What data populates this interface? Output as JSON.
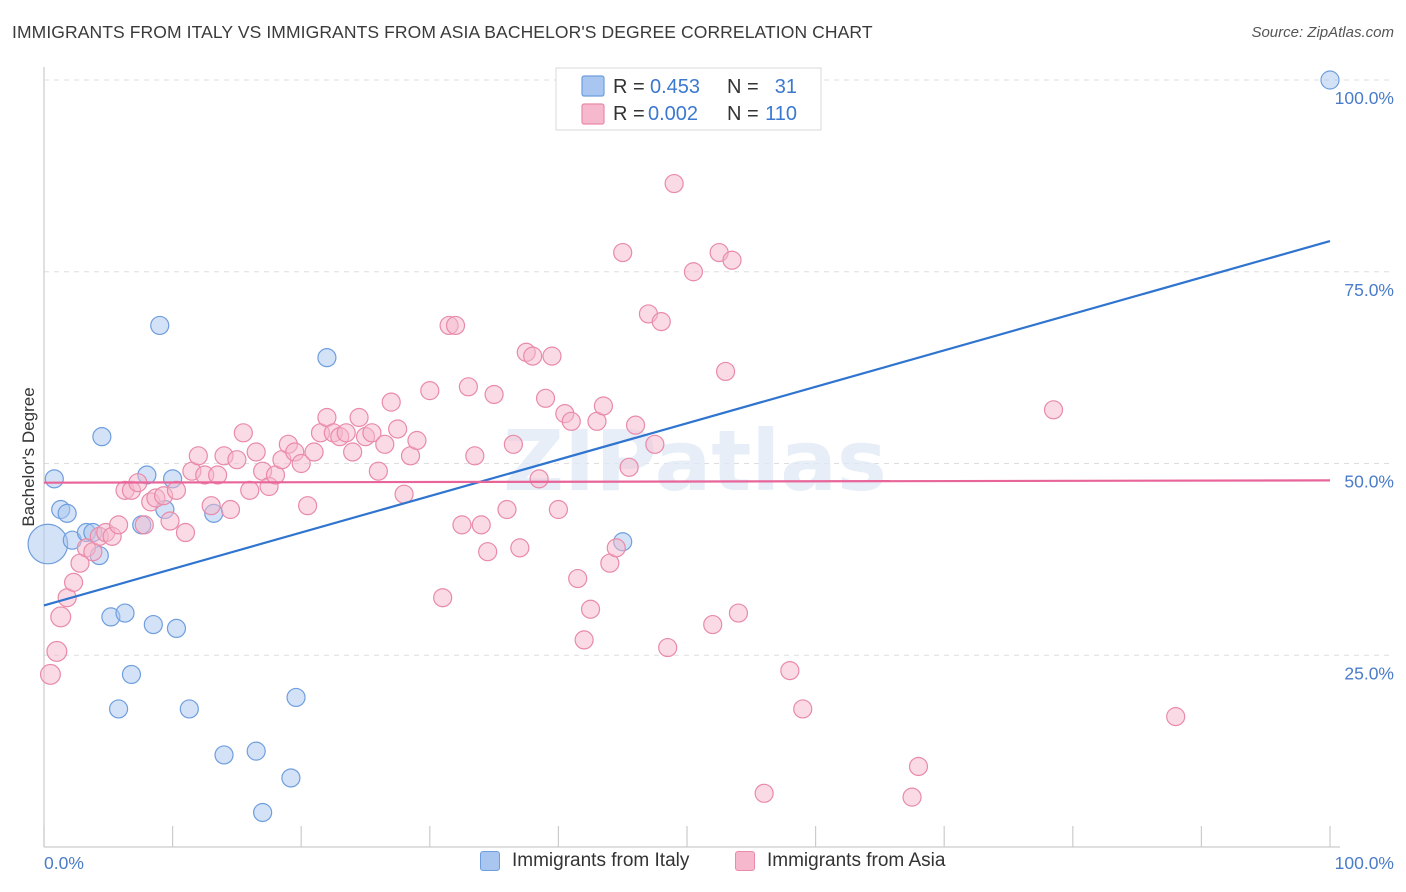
{
  "header": {
    "title": "IMMIGRANTS FROM ITALY VS IMMIGRANTS FROM ASIA BACHELOR'S DEGREE CORRELATION CHART",
    "source": "Source: ZipAtlas.com"
  },
  "colors": {
    "italy_fill": "#a8c6f0",
    "italy_stroke": "#6f9ede",
    "italy_line": "#2f74cf",
    "asia_fill": "#f5b8cc",
    "asia_stroke": "#e98aa9",
    "asia_line": "#e8659a",
    "tick_text": "#4a7cc9",
    "grid": "#dddddd"
  },
  "stats_legend": {
    "rows": [
      {
        "r_label": "R =",
        "r_value": "0.453",
        "n_label": "N =",
        "n_value": "31"
      },
      {
        "r_label": "R =",
        "r_value": "0.002",
        "n_label": "N =",
        "n_value": "110"
      }
    ]
  },
  "chart_data": {
    "type": "scatter",
    "title": "IMMIGRANTS FROM ITALY VS IMMIGRANTS FROM ASIA BACHELOR'S DEGREE CORRELATION CHART",
    "xlabel": "",
    "ylabel": "Bachelor's Degree",
    "xlim": [
      0,
      100
    ],
    "ylim": [
      0,
      100
    ],
    "x_tick_labels": {
      "left": "0.0%",
      "right": "100.0%"
    },
    "y_ticks": [
      {
        "value": 100,
        "label": "100.0%"
      },
      {
        "value": 75,
        "label": "75.0%"
      },
      {
        "value": 50,
        "label": "50.0%"
      },
      {
        "value": 25,
        "label": "25.0%"
      }
    ],
    "legend_position": "bottom",
    "watermark": "ZIPatlas",
    "series": [
      {
        "name": "Immigrants from Italy",
        "color_key": "italy",
        "r": 0.453,
        "n": 31,
        "trend": {
          "x0": 0,
          "y0": 31.5,
          "x1": 100,
          "y1": 79.0
        },
        "points": [
          [
            0.3,
            39.5,
            2.2
          ],
          [
            0.8,
            48.0,
            1
          ],
          [
            1.3,
            44.0,
            1
          ],
          [
            1.8,
            43.5,
            1
          ],
          [
            2.2,
            40.0,
            1
          ],
          [
            3.3,
            41.0,
            1
          ],
          [
            3.8,
            41.0,
            1
          ],
          [
            4.3,
            38.0,
            1
          ],
          [
            4.5,
            53.5,
            1
          ],
          [
            5.2,
            30.0,
            1
          ],
          [
            5.8,
            18.0,
            1
          ],
          [
            6.3,
            30.5,
            1
          ],
          [
            6.8,
            22.5,
            1
          ],
          [
            7.6,
            42.0,
            1
          ],
          [
            8.0,
            48.5,
            1
          ],
          [
            8.5,
            29.0,
            1
          ],
          [
            9.0,
            68.0,
            1
          ],
          [
            9.4,
            44.0,
            1
          ],
          [
            10.0,
            48.0,
            1
          ],
          [
            10.3,
            28.5,
            1
          ],
          [
            11.3,
            18.0,
            1
          ],
          [
            13.2,
            43.5,
            1
          ],
          [
            14.0,
            12.0,
            1
          ],
          [
            16.5,
            12.5,
            1
          ],
          [
            17.0,
            4.5,
            1
          ],
          [
            19.2,
            9.0,
            1
          ],
          [
            19.6,
            19.5,
            1
          ],
          [
            22.0,
            63.8,
            1
          ],
          [
            45.0,
            39.8,
            1
          ],
          [
            100.0,
            100.0,
            1
          ]
        ]
      },
      {
        "name": "Immigrants from Asia",
        "color_key": "asia",
        "r": 0.002,
        "n": 110,
        "trend": {
          "x0": 0,
          "y0": 47.5,
          "x1": 100,
          "y1": 47.8
        },
        "points": [
          [
            0.5,
            22.5,
            1.1
          ],
          [
            1.0,
            25.5,
            1.1
          ],
          [
            1.3,
            30.0,
            1.1
          ],
          [
            1.8,
            32.5,
            1
          ],
          [
            2.3,
            34.5,
            1
          ],
          [
            2.8,
            37.0,
            1
          ],
          [
            3.3,
            39.0,
            1
          ],
          [
            3.8,
            38.5,
            1
          ],
          [
            4.3,
            40.5,
            1
          ],
          [
            4.8,
            41.0,
            1
          ],
          [
            5.3,
            40.5,
            1
          ],
          [
            5.8,
            42.0,
            1
          ],
          [
            6.3,
            46.5,
            1
          ],
          [
            6.8,
            46.5,
            1
          ],
          [
            7.3,
            47.5,
            1
          ],
          [
            7.8,
            42.0,
            1
          ],
          [
            8.3,
            45.0,
            1
          ],
          [
            8.7,
            45.5,
            1
          ],
          [
            9.3,
            45.8,
            1
          ],
          [
            9.8,
            42.5,
            1
          ],
          [
            10.3,
            46.5,
            1
          ],
          [
            11.0,
            41.0,
            1
          ],
          [
            11.5,
            49.0,
            1
          ],
          [
            12.0,
            51.0,
            1
          ],
          [
            12.5,
            48.5,
            1
          ],
          [
            13.0,
            44.5,
            1
          ],
          [
            13.5,
            48.5,
            1
          ],
          [
            14.0,
            51.0,
            1
          ],
          [
            14.5,
            44.0,
            1
          ],
          [
            15.0,
            50.5,
            1
          ],
          [
            15.5,
            54.0,
            1
          ],
          [
            16.0,
            46.5,
            1
          ],
          [
            16.5,
            51.5,
            1
          ],
          [
            17.0,
            49.0,
            1
          ],
          [
            17.5,
            47.0,
            1
          ],
          [
            18.0,
            48.5,
            1
          ],
          [
            18.5,
            50.5,
            1
          ],
          [
            19.0,
            52.5,
            1
          ],
          [
            19.5,
            51.5,
            1
          ],
          [
            20.0,
            50.0,
            1
          ],
          [
            20.5,
            44.5,
            1
          ],
          [
            21.0,
            51.5,
            1
          ],
          [
            21.5,
            54.0,
            1
          ],
          [
            22.0,
            56.0,
            1
          ],
          [
            22.5,
            54.0,
            1
          ],
          [
            23.0,
            53.5,
            1
          ],
          [
            23.5,
            54.0,
            1
          ],
          [
            24.0,
            51.5,
            1
          ],
          [
            24.5,
            56.0,
            1
          ],
          [
            25.0,
            53.5,
            1
          ],
          [
            25.5,
            54.0,
            1
          ],
          [
            26.0,
            49.0,
            1
          ],
          [
            26.5,
            52.5,
            1
          ],
          [
            27.0,
            58.0,
            1
          ],
          [
            27.5,
            54.5,
            1
          ],
          [
            28.0,
            46.0,
            1
          ],
          [
            28.5,
            51.0,
            1
          ],
          [
            29.0,
            53.0,
            1
          ],
          [
            30.0,
            59.5,
            1
          ],
          [
            31.0,
            32.5,
            1
          ],
          [
            31.5,
            68.0,
            1
          ],
          [
            32.0,
            68.0,
            1
          ],
          [
            32.5,
            42.0,
            1
          ],
          [
            33.0,
            60.0,
            1
          ],
          [
            33.5,
            51.0,
            1
          ],
          [
            34.0,
            42.0,
            1
          ],
          [
            34.5,
            38.5,
            1
          ],
          [
            35.0,
            59.0,
            1
          ],
          [
            36.0,
            44.0,
            1
          ],
          [
            36.5,
            52.5,
            1
          ],
          [
            37.0,
            39.0,
            1
          ],
          [
            37.5,
            64.5,
            1
          ],
          [
            38.0,
            64.0,
            1
          ],
          [
            38.5,
            48.0,
            1
          ],
          [
            39.0,
            58.5,
            1
          ],
          [
            39.5,
            64.0,
            1
          ],
          [
            40.0,
            44.0,
            1
          ],
          [
            40.5,
            56.5,
            1
          ],
          [
            41.0,
            55.5,
            1
          ],
          [
            41.5,
            35.0,
            1
          ],
          [
            42.0,
            27.0,
            1
          ],
          [
            42.5,
            31.0,
            1
          ],
          [
            43.0,
            55.5,
            1
          ],
          [
            43.5,
            57.5,
            1
          ],
          [
            44.0,
            37.0,
            1
          ],
          [
            44.5,
            39.0,
            1
          ],
          [
            45.0,
            77.5,
            1
          ],
          [
            45.5,
            49.5,
            1
          ],
          [
            46.0,
            55.0,
            1
          ],
          [
            47.0,
            69.5,
            1
          ],
          [
            47.5,
            52.5,
            1
          ],
          [
            48.0,
            68.5,
            1
          ],
          [
            48.5,
            26.0,
            1
          ],
          [
            49.0,
            86.5,
            1
          ],
          [
            50.5,
            75.0,
            1
          ],
          [
            52.0,
            29.0,
            1
          ],
          [
            52.5,
            77.5,
            1
          ],
          [
            53.0,
            62.0,
            1
          ],
          [
            53.5,
            76.5,
            1
          ],
          [
            54.0,
            30.5,
            1
          ],
          [
            56.0,
            7.0,
            1
          ],
          [
            58.0,
            23.0,
            1
          ],
          [
            59.0,
            18.0,
            1
          ],
          [
            67.5,
            6.5,
            1
          ],
          [
            68.0,
            10.5,
            1
          ],
          [
            78.5,
            57.0,
            1
          ],
          [
            88.0,
            17.0,
            1
          ]
        ]
      }
    ]
  },
  "bottom_legend": {
    "items": [
      {
        "label": "Immigrants from Italy"
      },
      {
        "label": "Immigrants from Asia"
      }
    ]
  }
}
